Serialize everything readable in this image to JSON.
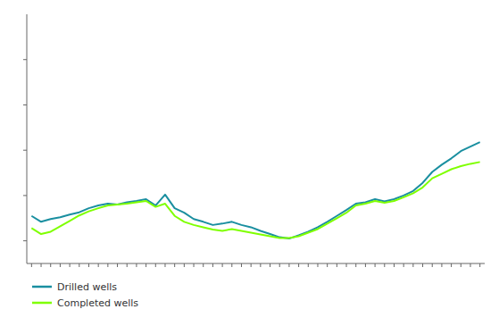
{
  "chart_data": {
    "type": "line",
    "x": [
      0,
      1,
      2,
      3,
      4,
      5,
      6,
      7,
      8,
      9,
      10,
      11,
      12,
      13,
      14,
      15,
      16,
      17,
      18,
      19,
      20,
      21,
      22,
      23,
      24,
      25,
      26,
      27,
      28,
      29,
      30,
      31,
      32,
      33,
      34,
      35,
      36,
      37,
      38,
      39,
      40,
      41,
      42,
      43,
      44,
      45,
      46,
      47
    ],
    "series": [
      {
        "name": "Drilled wells",
        "color": "#1a8fa0",
        "values": [
          4.55,
          4.42,
          4.48,
          4.52,
          4.58,
          4.63,
          4.72,
          4.78,
          4.82,
          4.8,
          4.85,
          4.88,
          4.92,
          4.78,
          5.02,
          4.72,
          4.62,
          4.48,
          4.42,
          4.35,
          4.38,
          4.42,
          4.35,
          4.3,
          4.22,
          4.15,
          4.08,
          4.05,
          4.12,
          4.2,
          4.3,
          4.42,
          4.55,
          4.68,
          4.82,
          4.85,
          4.92,
          4.87,
          4.92,
          5.0,
          5.1,
          5.28,
          5.52,
          5.68,
          5.82,
          5.98,
          6.08,
          6.18
        ]
      },
      {
        "name": "Completed wells",
        "color": "#7fff00",
        "values": [
          4.28,
          4.15,
          4.2,
          4.32,
          4.44,
          4.56,
          4.65,
          4.72,
          4.78,
          4.8,
          4.82,
          4.85,
          4.88,
          4.75,
          4.82,
          4.55,
          4.42,
          4.35,
          4.3,
          4.25,
          4.22,
          4.26,
          4.22,
          4.18,
          4.14,
          4.1,
          4.06,
          4.06,
          4.1,
          4.18,
          4.26,
          4.38,
          4.5,
          4.62,
          4.78,
          4.82,
          4.88,
          4.84,
          4.88,
          4.96,
          5.05,
          5.18,
          5.38,
          5.48,
          5.58,
          5.65,
          5.7,
          5.74
        ]
      }
    ],
    "xlim": [
      -0.5,
      47.5
    ],
    "xticks": [
      0,
      1,
      2,
      3,
      4,
      5,
      6,
      7,
      8,
      9,
      10,
      11,
      12,
      13,
      14,
      15,
      16,
      17,
      18,
      19,
      20,
      21,
      22,
      23,
      24,
      25,
      26,
      27,
      28,
      29,
      30,
      31,
      32,
      33,
      34,
      35,
      36,
      37,
      38,
      39,
      40,
      41,
      42,
      43,
      44,
      45,
      46,
      47
    ],
    "ylim": [
      3.5,
      9.0
    ],
    "yticks": [
      4,
      5,
      6,
      7,
      8
    ],
    "tick_labels": false,
    "grid": false,
    "legend": "lower left"
  }
}
